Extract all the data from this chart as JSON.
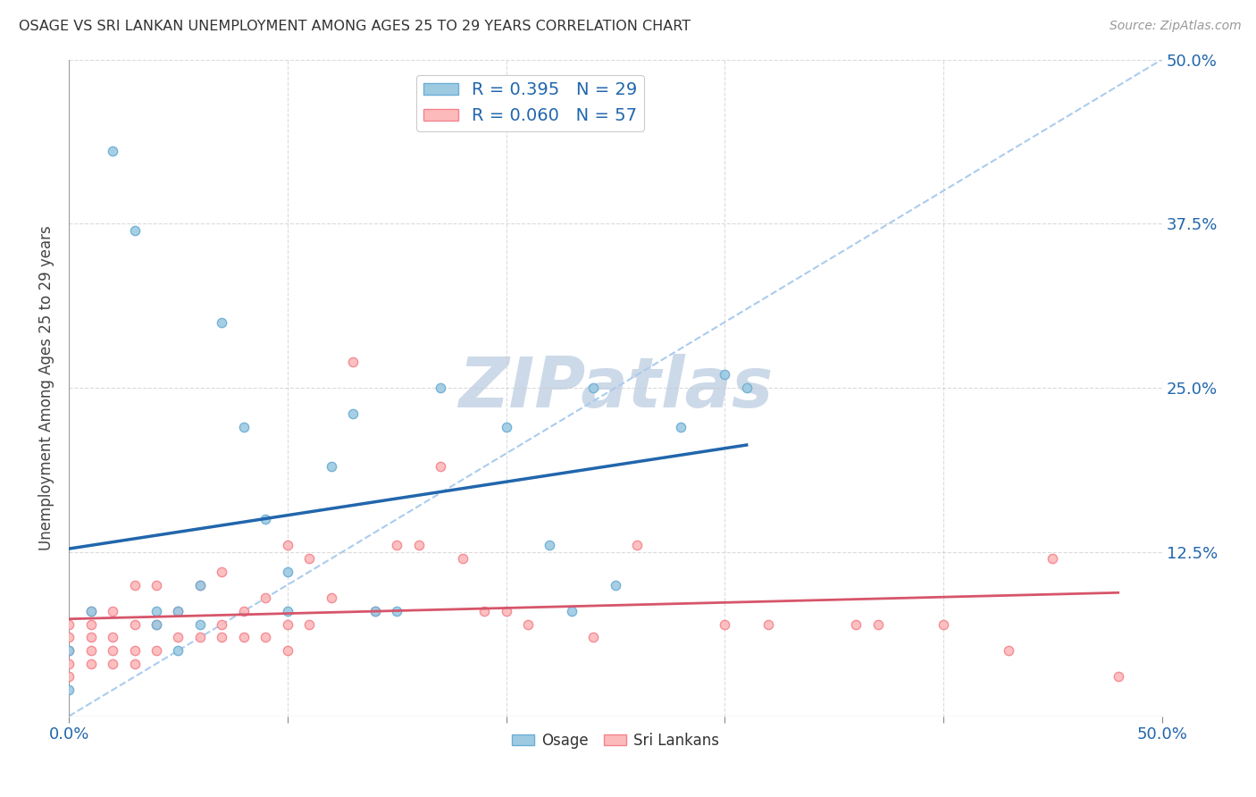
{
  "title": "OSAGE VS SRI LANKAN UNEMPLOYMENT AMONG AGES 25 TO 29 YEARS CORRELATION CHART",
  "source": "Source: ZipAtlas.com",
  "ylabel": "Unemployment Among Ages 25 to 29 years",
  "xlim": [
    0.0,
    0.5
  ],
  "ylim": [
    -0.02,
    0.52
  ],
  "plot_ylim": [
    0.0,
    0.5
  ],
  "xticks": [
    0.0,
    0.1,
    0.2,
    0.3,
    0.4,
    0.5
  ],
  "yticks": [
    0.0,
    0.125,
    0.25,
    0.375,
    0.5
  ],
  "osage_R": 0.395,
  "osage_N": 29,
  "srilanka_R": 0.06,
  "srilanka_N": 57,
  "osage_color": "#9ecae1",
  "srilanka_color": "#fcbaba",
  "osage_edge_color": "#6baed6",
  "srilanka_edge_color": "#f4848f",
  "trend_osage_color": "#2166ac",
  "trend_srilanka_color": "#d6556a",
  "diagonal_color": "#aaccee",
  "watermark": "ZIPatlas",
  "watermark_color": "#ccd9e8",
  "osage_x": [
    0.0,
    0.0,
    0.01,
    0.02,
    0.03,
    0.04,
    0.04,
    0.05,
    0.05,
    0.06,
    0.06,
    0.07,
    0.08,
    0.09,
    0.1,
    0.1,
    0.12,
    0.13,
    0.14,
    0.15,
    0.17,
    0.2,
    0.22,
    0.23,
    0.24,
    0.25,
    0.28,
    0.3,
    0.31
  ],
  "osage_y": [
    0.02,
    0.05,
    0.08,
    0.43,
    0.37,
    0.07,
    0.08,
    0.05,
    0.08,
    0.07,
    0.1,
    0.3,
    0.22,
    0.15,
    0.08,
    0.11,
    0.19,
    0.23,
    0.08,
    0.08,
    0.25,
    0.22,
    0.13,
    0.08,
    0.25,
    0.1,
    0.22,
    0.26,
    0.25
  ],
  "srilanka_x": [
    0.0,
    0.0,
    0.0,
    0.0,
    0.0,
    0.01,
    0.01,
    0.01,
    0.01,
    0.01,
    0.02,
    0.02,
    0.02,
    0.02,
    0.03,
    0.03,
    0.03,
    0.03,
    0.04,
    0.04,
    0.04,
    0.05,
    0.05,
    0.06,
    0.06,
    0.07,
    0.07,
    0.07,
    0.08,
    0.08,
    0.09,
    0.09,
    0.1,
    0.1,
    0.1,
    0.11,
    0.11,
    0.12,
    0.13,
    0.14,
    0.15,
    0.16,
    0.17,
    0.18,
    0.19,
    0.2,
    0.21,
    0.24,
    0.26,
    0.3,
    0.32,
    0.36,
    0.37,
    0.4,
    0.43,
    0.45,
    0.48
  ],
  "srilanka_y": [
    0.03,
    0.04,
    0.05,
    0.06,
    0.07,
    0.04,
    0.05,
    0.06,
    0.07,
    0.08,
    0.04,
    0.05,
    0.06,
    0.08,
    0.04,
    0.05,
    0.07,
    0.1,
    0.05,
    0.07,
    0.1,
    0.06,
    0.08,
    0.06,
    0.1,
    0.06,
    0.07,
    0.11,
    0.06,
    0.08,
    0.06,
    0.09,
    0.05,
    0.07,
    0.13,
    0.07,
    0.12,
    0.09,
    0.27,
    0.08,
    0.13,
    0.13,
    0.19,
    0.12,
    0.08,
    0.08,
    0.07,
    0.06,
    0.13,
    0.07,
    0.07,
    0.07,
    0.07,
    0.07,
    0.05,
    0.12,
    0.03
  ],
  "background_color": "#ffffff",
  "grid_color": "#cccccc",
  "marker_size": 55,
  "marker_linewidth": 1.0
}
